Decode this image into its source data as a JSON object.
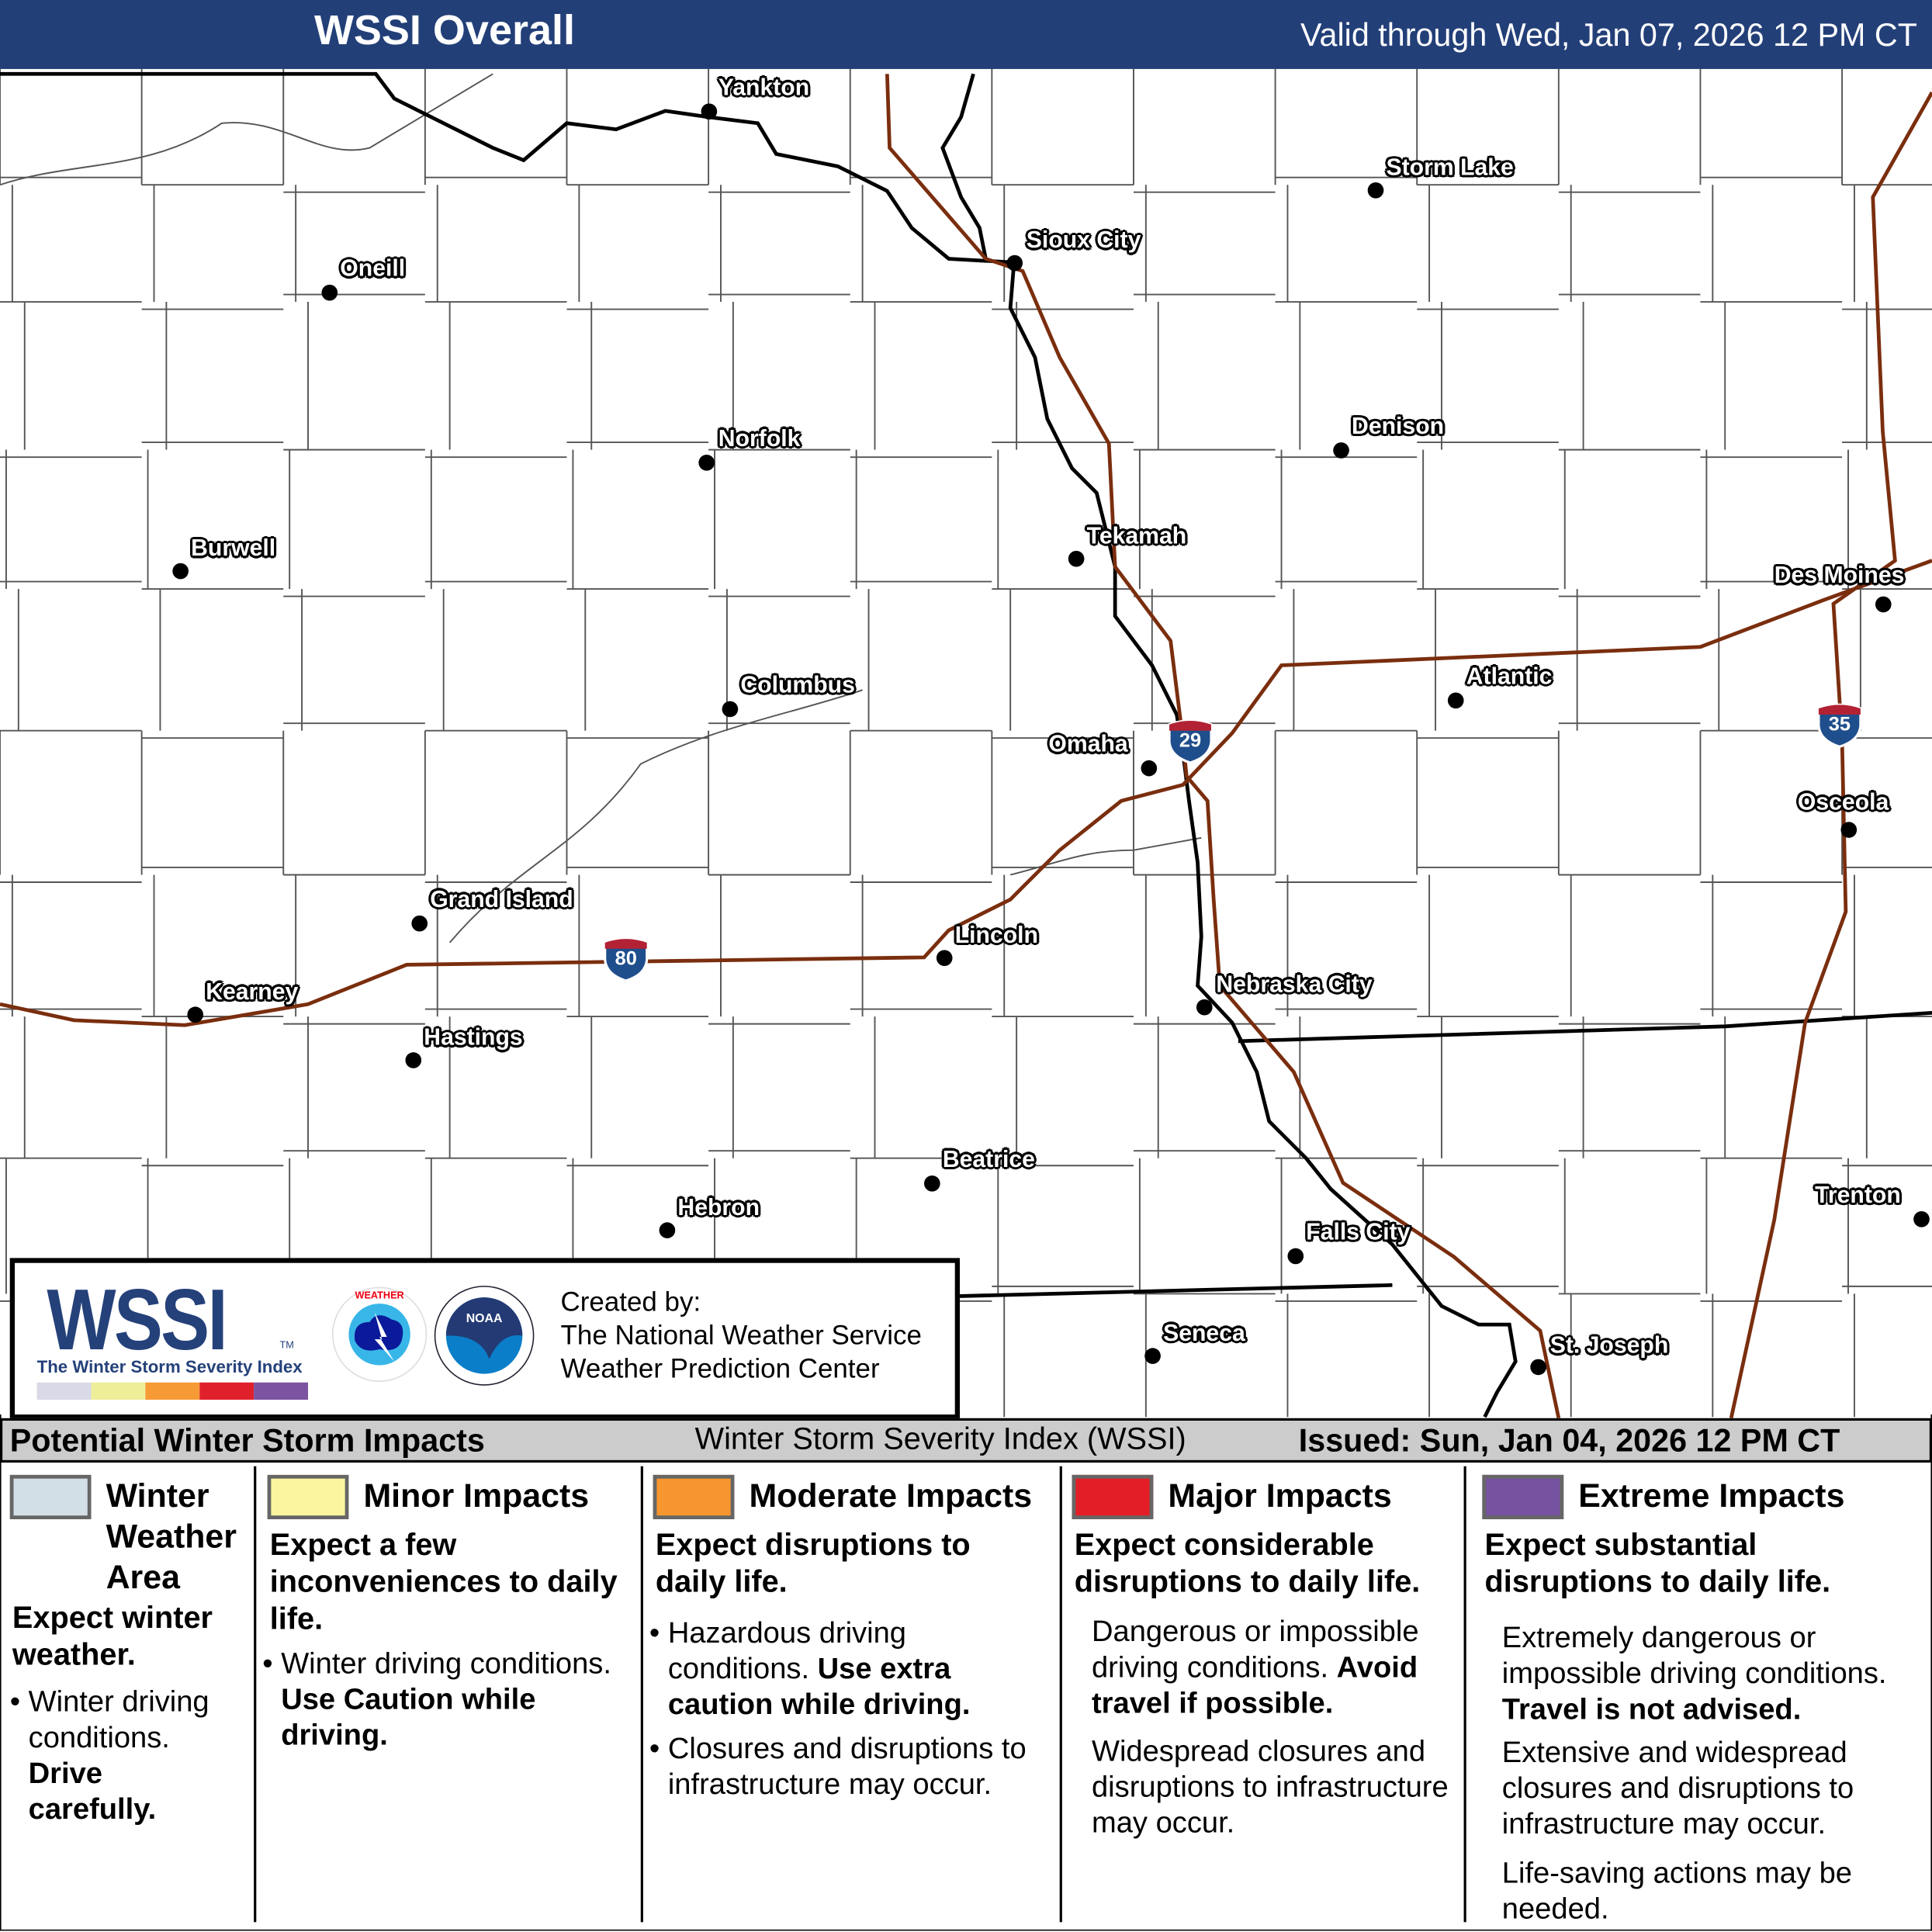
{
  "header": {
    "title": "WSSI Overall",
    "valid": "Valid through Wed, Jan 07, 2026 12 PM CT"
  },
  "map": {
    "cities": [
      "Yankton",
      "Storm Lake",
      "Sioux City",
      "Oneill",
      "Norfolk",
      "Denison",
      "Burwell",
      "Tekamah",
      "Des Moines",
      "Columbus",
      "Atlantic",
      "Omaha",
      "Osceola",
      "Grand Island",
      "Lincoln",
      "Kearney",
      "Nebraska City",
      "Hastings",
      "Beatrice",
      "Trenton",
      "Hebron",
      "Falls City",
      "Seneca",
      "St. Joseph"
    ],
    "interstates": [
      "80",
      "29",
      "35"
    ],
    "colors": {
      "interstate": "#7a2e0e",
      "state_border": "#000000",
      "county": "#555555",
      "shield_blue": "#1f4e8c",
      "shield_red": "#b22234"
    }
  },
  "logo": {
    "wordmark": "WSSI",
    "tm": "TM",
    "subtitle": "The Winter Storm Severity Index",
    "nws_seal": "NATIONAL WEATHER SERVICE",
    "noaa_seal": "NOAA",
    "created_by": "Created by:",
    "org1": "The National Weather Service",
    "org2": "Weather Prediction Center",
    "swatches": [
      "#d9d9e8",
      "#eeee99",
      "#f69a35",
      "#e0202a",
      "#7b53a0"
    ]
  },
  "legend_bar": {
    "left": "Potential Winter Storm Impacts",
    "center": "Winter Storm Severity Index (WSSI)",
    "right": "Issued: Sun, Jan 04, 2026 12 PM CT"
  },
  "legend": [
    {
      "color": "#d3dfe6",
      "title": "Winter Weather Area",
      "summary": "Expect winter weather.",
      "b1": "Winter driving conditions.",
      "b1_bold": "Drive carefully."
    },
    {
      "color": "#fbf59f",
      "title": "Minor Impacts",
      "summary": "Expect a few inconveniences to daily life.",
      "b1": "Winter driving conditions.",
      "b1_bold": "Use Caution while driving."
    },
    {
      "color": "#f7962e",
      "title": "Moderate Impacts",
      "summary": "Expect disruptions to daily life.",
      "b1": "Hazardous driving conditions.",
      "b1_bold": "Use extra caution while driving.",
      "b2": "Closures and disruptions to infrastructure may occur."
    },
    {
      "color": "#e31e26",
      "title": "Major Impacts",
      "summary": "Expect considerable disruptions to daily life.",
      "b1": "Dangerous or impossible driving conditions.",
      "b1_bold": "Avoid travel if possible.",
      "b2": "Widespread closures and disruptions to infrastructure may occur."
    },
    {
      "color": "#7752a1",
      "title": "Extreme Impacts",
      "summary": "Expect substantial disruptions to daily life.",
      "b1": "Extremely dangerous or impossible driving conditions.",
      "b1_bold": "Travel is not advised.",
      "b2": "Extensive and widespread closures and disruptions to infrastructure may occur.",
      "b3": "Life-saving actions may be needed."
    }
  ]
}
